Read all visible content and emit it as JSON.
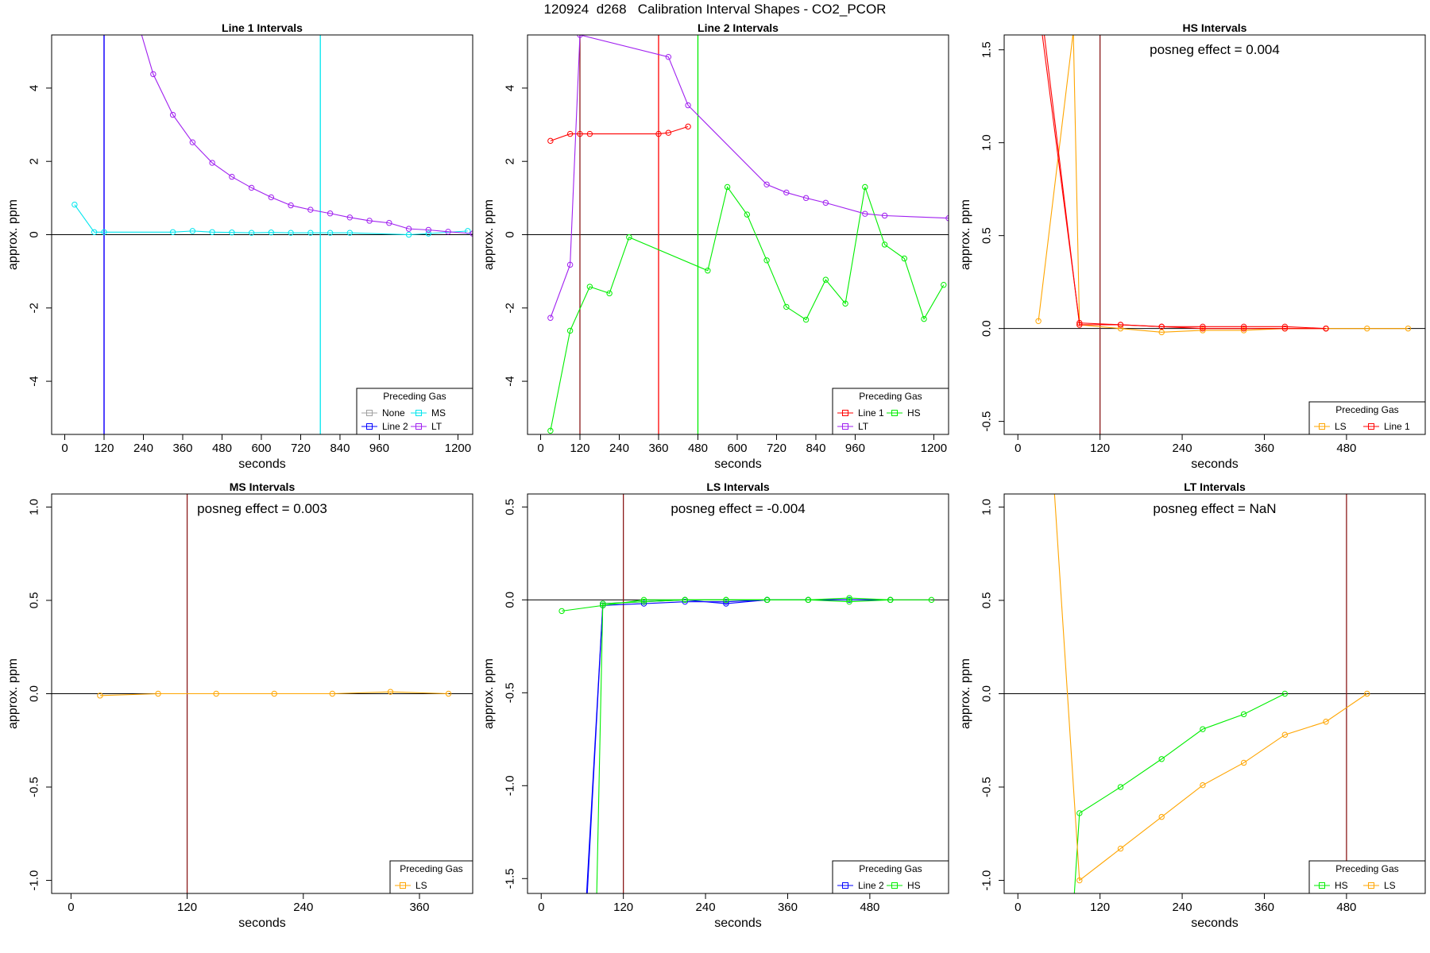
{
  "page_title": "120924  d268   Calibration Interval Shapes - CO2_PCOR",
  "colors": {
    "None": "#a0a0a0",
    "Line 1": "#ff0000",
    "Line 2": "#0000ff",
    "HS": "#00ee00",
    "MS": "#00e5ee",
    "LS": "#ffa500",
    "LT": "#a020f0",
    "vline_brown": "#8b1a1a",
    "axis": "#000000"
  },
  "chart_data": [
    {
      "type": "line",
      "title": "Line 1 Intervals",
      "xlabel": "seconds",
      "ylabel": "approx. ppm",
      "xlim": [
        -40,
        1245
      ],
      "ylim": [
        -5.45,
        5.45
      ],
      "xticks": [
        0,
        120,
        240,
        360,
        480,
        600,
        720,
        840,
        960,
        1200
      ],
      "yticks": [
        -4,
        -2,
        0,
        2,
        4
      ],
      "annotation": "",
      "legend": {
        "title": "Preceding Gas",
        "position": "bottom-right",
        "columns": 2,
        "entries": [
          "None",
          "MS",
          "Line 2",
          "LT"
        ]
      },
      "vlines": [
        {
          "x": 120,
          "color": "LT"
        },
        {
          "x": 120,
          "color": "Line 2"
        },
        {
          "x": 780,
          "color": "MS"
        }
      ],
      "series": [
        {
          "name": "MS",
          "x": [
            30,
            90,
            120,
            330,
            390,
            450,
            510,
            570,
            630,
            690,
            750,
            810,
            870,
            1050,
            1110,
            1230
          ],
          "y": [
            0.82,
            0.07,
            0.07,
            0.07,
            0.1,
            0.07,
            0.06,
            0.05,
            0.06,
            0.05,
            0.05,
            0.05,
            0.05,
            0.0,
            0.03,
            0.1
          ]
        },
        {
          "name": "LT",
          "x": [
            210,
            270,
            330,
            390,
            450,
            510,
            570,
            630,
            690,
            750,
            810,
            870,
            930,
            990,
            1050,
            1110,
            1170,
            1245
          ],
          "y": [
            6.2,
            4.38,
            3.27,
            2.52,
            1.96,
            1.58,
            1.28,
            1.02,
            0.8,
            0.68,
            0.58,
            0.47,
            0.38,
            0.32,
            0.16,
            0.13,
            0.08,
            0.03
          ]
        }
      ]
    },
    {
      "type": "line",
      "title": "Line 2 Intervals",
      "xlabel": "seconds",
      "ylabel": "approx. ppm",
      "xlim": [
        -40,
        1245
      ],
      "ylim": [
        -5.45,
        5.45
      ],
      "xticks": [
        0,
        120,
        240,
        360,
        480,
        600,
        720,
        840,
        960,
        1200
      ],
      "yticks": [
        -4,
        -2,
        0,
        2,
        4
      ],
      "annotation": "",
      "legend": {
        "title": "Preceding Gas",
        "position": "bottom-right",
        "columns": 2,
        "entries": [
          "Line 1",
          "HS",
          "LT"
        ]
      },
      "vlines": [
        {
          "x": 120,
          "color": "vline_brown"
        },
        {
          "x": 360,
          "color": "Line 1"
        },
        {
          "x": 480,
          "color": "HS"
        }
      ],
      "series": [
        {
          "name": "Line 1",
          "x": [
            30,
            90,
            120,
            150,
            360,
            390,
            450
          ],
          "y": [
            2.56,
            2.75,
            2.75,
            2.75,
            2.75,
            2.78,
            2.95
          ]
        },
        {
          "name": "HS",
          "x": [
            30,
            90,
            150,
            210,
            270,
            510,
            570,
            630,
            690,
            750,
            810,
            870,
            930,
            990,
            1050,
            1110,
            1170,
            1230
          ],
          "y": [
            -5.35,
            -2.62,
            -1.42,
            -1.6,
            -0.07,
            -0.98,
            1.3,
            0.55,
            -0.7,
            -1.97,
            -2.32,
            -1.23,
            -1.88,
            1.3,
            -0.27,
            -0.65,
            -2.3,
            -1.37
          ]
        },
        {
          "name": "LT",
          "x": [
            30,
            90,
            120,
            390,
            450,
            690,
            750,
            810,
            870,
            990,
            1050,
            1245
          ],
          "y": [
            -2.27,
            -0.82,
            5.45,
            4.85,
            3.53,
            1.37,
            1.15,
            1.0,
            0.87,
            0.57,
            0.52,
            0.45
          ]
        }
      ]
    },
    {
      "type": "line",
      "title": "HS Intervals",
      "xlabel": "seconds",
      "ylabel": "approx. ppm",
      "xlim": [
        -20,
        595
      ],
      "ylim": [
        -0.57,
        1.58
      ],
      "xticks": [
        0,
        120,
        240,
        360,
        480
      ],
      "yticks": [
        -0.5,
        0.0,
        0.5,
        1.0,
        1.5
      ],
      "annotation": "posneg effect = 0.004",
      "legend": {
        "title": "Preceding Gas",
        "position": "bottom-right",
        "columns": 2,
        "entries": [
          "LS",
          "Line 1"
        ]
      },
      "vlines": [
        {
          "x": 120,
          "color": "vline_brown"
        }
      ],
      "series": [
        {
          "name": "LS",
          "x": [
            30,
            81,
            90,
            150,
            210,
            270,
            330,
            390,
            450,
            510,
            570
          ],
          "y": [
            0.04,
            1.6,
            0.02,
            0.0,
            -0.02,
            -0.01,
            -0.01,
            0.0,
            0.0,
            0.0,
            0.0
          ]
        },
        {
          "name": "Line 1",
          "x": [
            35,
            90,
            150,
            210,
            270,
            330,
            390,
            450
          ],
          "y": [
            1.6,
            0.03,
            0.02,
            0.01,
            0.01,
            0.01,
            0.01,
            0.0
          ]
        },
        {
          "name": "Line 1",
          "x": [
            38,
            90,
            150,
            210,
            270,
            330,
            390,
            450
          ],
          "y": [
            1.6,
            0.02,
            0.02,
            0.01,
            0.0,
            0.0,
            0.0,
            0.0
          ]
        }
      ]
    },
    {
      "type": "line",
      "title": "MS Intervals",
      "xlabel": "seconds",
      "ylabel": "approx. ppm",
      "xlim": [
        -20,
        415
      ],
      "ylim": [
        -1.07,
        1.07
      ],
      "xticks": [
        0,
        120,
        240,
        360
      ],
      "yticks": [
        -1.0,
        -0.5,
        0.0,
        0.5,
        1.0
      ],
      "annotation": "posneg effect = 0.003",
      "legend": {
        "title": "Preceding Gas",
        "position": "bottom-right",
        "columns": 1,
        "entries": [
          "LS"
        ]
      },
      "vlines": [
        {
          "x": 120,
          "color": "vline_brown"
        }
      ],
      "series": [
        {
          "name": "LS",
          "x": [
            30,
            90,
            150,
            210,
            270,
            330,
            390
          ],
          "y": [
            -0.01,
            0.0,
            0.0,
            0.0,
            0.0,
            0.01,
            0.0
          ]
        }
      ]
    },
    {
      "type": "line",
      "title": "LS Intervals",
      "xlabel": "seconds",
      "ylabel": "approx. ppm",
      "xlim": [
        -20,
        595
      ],
      "ylim": [
        -1.58,
        0.57
      ],
      "xticks": [
        0,
        120,
        240,
        360,
        480
      ],
      "yticks": [
        -1.5,
        -1.0,
        -0.5,
        0.0,
        0.5
      ],
      "annotation": "posneg effect = -0.004",
      "legend": {
        "title": "Preceding Gas",
        "position": "bottom-right",
        "columns": 2,
        "entries": [
          "Line 2",
          "HS"
        ]
      },
      "vlines": [
        {
          "x": 120,
          "color": "vline_brown"
        }
      ],
      "series": [
        {
          "name": "Line 2",
          "x": [
            66,
            90,
            150,
            210,
            270,
            330
          ],
          "y": [
            -1.6,
            -0.02,
            -0.01,
            0.0,
            -0.02,
            0.0
          ]
        },
        {
          "name": "Line 2",
          "x": [
            67,
            90,
            150,
            210,
            270,
            330,
            390,
            450,
            510
          ],
          "y": [
            -1.6,
            -0.03,
            -0.02,
            -0.01,
            -0.01,
            0.0,
            0.0,
            0.0,
            0.0
          ]
        },
        {
          "name": "HS",
          "x": [
            30,
            90,
            150,
            210,
            270,
            330,
            390,
            450,
            510,
            570
          ],
          "y": [
            -0.06,
            -0.03,
            0.0,
            0.0,
            0.0,
            0.0,
            0.0,
            -0.01,
            0.0,
            0.0
          ]
        },
        {
          "name": "HS",
          "x": [
            81,
            90,
            150,
            210,
            270,
            330,
            390,
            450,
            510
          ],
          "y": [
            -1.6,
            -0.02,
            -0.01,
            0.0,
            0.0,
            0.0,
            0.0,
            0.01,
            0.0
          ]
        }
      ]
    },
    {
      "type": "line",
      "title": "LT Intervals",
      "xlabel": "seconds",
      "ylabel": "approx. ppm",
      "xlim": [
        -20,
        595
      ],
      "ylim": [
        -1.07,
        1.07
      ],
      "xticks": [
        0,
        120,
        240,
        360,
        480
      ],
      "yticks": [
        -1.0,
        -0.5,
        0.0,
        0.5,
        1.0
      ],
      "annotation": "posneg effect = NaN",
      "legend": {
        "title": "Preceding Gas",
        "position": "bottom-right",
        "columns": 2,
        "entries": [
          "HS",
          "LS"
        ]
      },
      "vlines": [
        {
          "x": 480,
          "color": "vline_brown"
        }
      ],
      "series": [
        {
          "name": "HS",
          "x": [
            82,
            90,
            150,
            210,
            270,
            330,
            390
          ],
          "y": [
            -1.1,
            -0.64,
            -0.5,
            -0.35,
            -0.19,
            -0.11,
            0.0
          ]
        },
        {
          "name": "LS",
          "x": [
            53,
            90,
            150,
            210,
            270,
            330,
            390,
            450,
            510
          ],
          "y": [
            1.1,
            -1.0,
            -0.83,
            -0.66,
            -0.49,
            -0.37,
            -0.22,
            -0.15,
            0.0
          ]
        }
      ]
    }
  ]
}
